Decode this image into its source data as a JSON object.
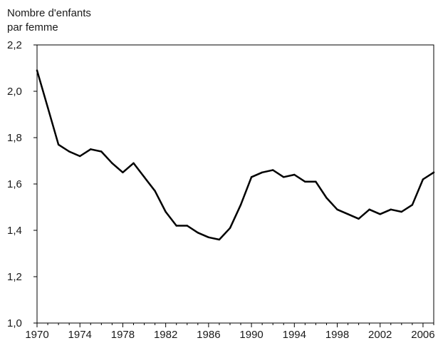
{
  "chart_data": {
    "type": "line",
    "title": "",
    "xlabel": "",
    "ylabel_lines": [
      "Nombre d'enfants",
      "par femme"
    ],
    "xlim": [
      1970,
      2007
    ],
    "ylim": [
      1.0,
      2.2
    ],
    "grid": false,
    "legend": "none",
    "line_color": "#000000",
    "x_ticks": [
      1970,
      1974,
      1978,
      1982,
      1986,
      1990,
      1994,
      1998,
      2002,
      2006
    ],
    "x_tick_labels": [
      "1970",
      "1974",
      "1978",
      "1982",
      "1986",
      "1990",
      "1994",
      "1998",
      "2002",
      "2006"
    ],
    "y_ticks": [
      1.0,
      1.2,
      1.4,
      1.6,
      1.8,
      2.0,
      2.2
    ],
    "y_tick_labels": [
      "1,0",
      "1,2",
      "1,4",
      "1,6",
      "1,8",
      "2,0",
      "2,2"
    ],
    "series": [
      {
        "x": [
          1970,
          1971,
          1972,
          1973,
          1974,
          1975,
          1976,
          1977,
          1978,
          1979,
          1980,
          1981,
          1982,
          1983,
          1984,
          1985,
          1986,
          1987,
          1988,
          1989,
          1990,
          1991,
          1992,
          1993,
          1994,
          1995,
          1996,
          1997,
          1998,
          1999,
          2000,
          2001,
          2002,
          2003,
          2004,
          2005,
          2006,
          2007
        ],
        "values": [
          2.09,
          1.93,
          1.77,
          1.74,
          1.72,
          1.75,
          1.74,
          1.69,
          1.65,
          1.69,
          1.63,
          1.57,
          1.48,
          1.42,
          1.42,
          1.39,
          1.37,
          1.36,
          1.41,
          1.51,
          1.63,
          1.65,
          1.66,
          1.63,
          1.64,
          1.61,
          1.61,
          1.54,
          1.49,
          1.47,
          1.45,
          1.49,
          1.47,
          1.49,
          1.48,
          1.51,
          1.62,
          1.65
        ]
      }
    ]
  }
}
